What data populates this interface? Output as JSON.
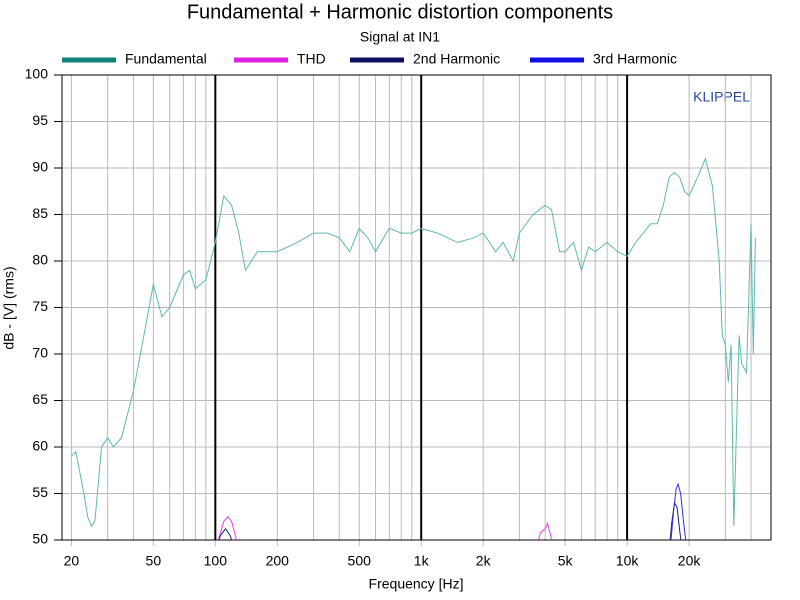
{
  "chart_data": {
    "type": "line",
    "title": "Fundamental + Harmonic distortion components",
    "subtitle": "Signal at IN1",
    "watermark": "KLIPPEL",
    "xlabel": "Frequency [Hz]",
    "ylabel": "dB - [V]  (rms)",
    "log_x": true,
    "xlim": [
      18,
      50000
    ],
    "ylim": [
      50,
      100
    ],
    "xticks": [
      20,
      50,
      100,
      200,
      500,
      {
        "value": 1000,
        "label": "1k"
      },
      {
        "value": 2000,
        "label": "2k"
      },
      {
        "value": 5000,
        "label": "5k"
      },
      {
        "value": 10000,
        "label": "10k"
      },
      {
        "value": 20000,
        "label": "20k"
      }
    ],
    "xgrid_minor": [
      30,
      40,
      60,
      70,
      80,
      90,
      300,
      400,
      600,
      700,
      800,
      900,
      3000,
      4000,
      6000,
      7000,
      8000,
      9000,
      30000,
      40000
    ],
    "xgrid_major": [
      100,
      1000,
      10000
    ],
    "yticks": [
      50,
      55,
      60,
      65,
      70,
      75,
      80,
      85,
      90,
      95,
      100
    ],
    "grid": true,
    "legend": "top",
    "series": [
      {
        "name": "Fundamental",
        "color": "#5fb8b0",
        "legend_color": "#108078",
        "x": [
          20,
          21,
          23,
          24,
          25,
          26,
          28,
          30,
          32,
          35,
          40,
          45,
          50,
          55,
          60,
          70,
          75,
          80,
          90,
          100,
          110,
          120,
          130,
          140,
          160,
          200,
          250,
          300,
          350,
          400,
          450,
          500,
          550,
          600,
          700,
          800,
          900,
          1000,
          1200,
          1500,
          1800,
          2000,
          2300,
          2500,
          2800,
          3000,
          3500,
          4000,
          4300,
          4700,
          5000,
          5500,
          6000,
          6500,
          7000,
          8000,
          9000,
          10000,
          11000,
          12000,
          13000,
          14000,
          15000,
          16000,
          17000,
          18000,
          19000,
          20000,
          22000,
          24000,
          26000,
          28000,
          29000,
          30000,
          31000,
          32000,
          33000,
          35000,
          36000,
          38000,
          40000,
          41000,
          42000
        ],
        "values": [
          59,
          59.5,
          55,
          52.5,
          51.5,
          52,
          60,
          61,
          60,
          61,
          66,
          72,
          77.5,
          74,
          75,
          78.5,
          79,
          77,
          78,
          82,
          87,
          86,
          83,
          79,
          81,
          81,
          82,
          83,
          83,
          82.5,
          81,
          83.5,
          82.5,
          81,
          83.5,
          83,
          83,
          83.5,
          83,
          82,
          82.5,
          83,
          81,
          82,
          80,
          83,
          85,
          86,
          85.5,
          81,
          81,
          82,
          79,
          81.5,
          81,
          82,
          81,
          80.5,
          82,
          83,
          84,
          84,
          86,
          89,
          89.5,
          89,
          87.5,
          87,
          89,
          91,
          88,
          80,
          72,
          71,
          67,
          71,
          51.5,
          72,
          69,
          68,
          84,
          70,
          82.5
        ]
      },
      {
        "name": "THD",
        "color": "#e040e0",
        "legend_color": "#e020e0",
        "x": [
          100,
          105,
          110,
          115,
          120,
          125,
          130,
          3600,
          3800,
          4000,
          4100,
          4200,
          4400
        ],
        "values": [
          49,
          50.5,
          52,
          52.5,
          52,
          50.5,
          49,
          49,
          50.8,
          51.2,
          51.8,
          51,
          49
        ]
      },
      {
        "name": "2nd Harmonic",
        "color": "#202080",
        "legend_color": "#101060",
        "x": [
          100,
          106,
          112,
          118,
          124,
          16000,
          16500,
          17000,
          17500,
          18000,
          18500
        ],
        "values": [
          49,
          50.5,
          51.2,
          50.5,
          49,
          49,
          52,
          54,
          53.5,
          51,
          49
        ]
      },
      {
        "name": "3rd Harmonic",
        "color": "#3030e0",
        "legend_color": "#1010e0",
        "x": [
          16200,
          16800,
          17300,
          17700,
          18200,
          18800,
          19500
        ],
        "values": [
          49,
          53,
          55.5,
          56,
          55,
          52,
          49
        ]
      }
    ]
  }
}
